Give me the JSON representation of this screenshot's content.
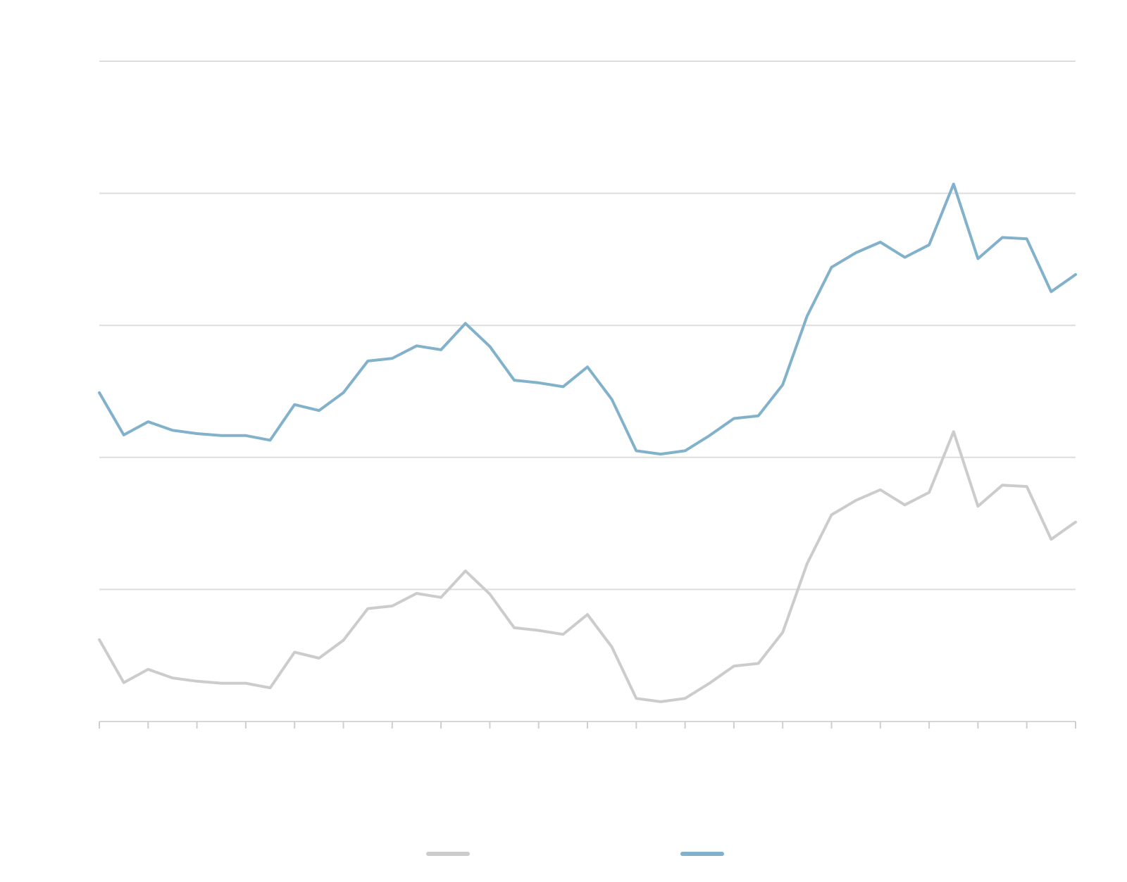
{
  "chart_data": {
    "type": "line",
    "title": "",
    "xlabel": "",
    "ylabel": "",
    "x": [
      0,
      1,
      2,
      3,
      4,
      5,
      6,
      7,
      8,
      9,
      10,
      11,
      12,
      13,
      14,
      15,
      16,
      17,
      18,
      19,
      20,
      21,
      22,
      23,
      24,
      25,
      26,
      27,
      28,
      29,
      30,
      31,
      32,
      33,
      34,
      35,
      36,
      37,
      38,
      39,
      40
    ],
    "ylim": [
      0,
      100
    ],
    "xlim": [
      0,
      40
    ],
    "grid": true,
    "legend": "bottom-center",
    "series": [
      {
        "name": "",
        "color": "#cccccc",
        "values": [
          12.4,
          5.9,
          7.9,
          6.6,
          6.1,
          5.8,
          5.8,
          5.1,
          10.5,
          9.6,
          12.3,
          17.1,
          17.5,
          19.4,
          18.8,
          22.8,
          19.3,
          14.2,
          13.8,
          13.2,
          16.2,
          11.3,
          3.5,
          3.0,
          3.5,
          5.8,
          8.4,
          8.8,
          13.5,
          23.9,
          31.3,
          33.5,
          35.1,
          32.8,
          34.7,
          43.9,
          32.6,
          35.8,
          35.6,
          27.6,
          30.2
        ]
      },
      {
        "name": "",
        "color": "#82b1cb",
        "values": [
          49.8,
          43.4,
          45.4,
          44.1,
          43.6,
          43.3,
          43.3,
          42.6,
          48.0,
          47.1,
          49.8,
          54.6,
          55.0,
          56.9,
          56.3,
          60.3,
          56.8,
          51.7,
          51.3,
          50.7,
          53.7,
          48.8,
          41.0,
          40.5,
          41.0,
          43.3,
          45.9,
          46.3,
          51.0,
          61.4,
          68.8,
          71.0,
          72.6,
          70.3,
          72.2,
          81.4,
          70.1,
          73.3,
          73.1,
          65.1,
          67.7
        ]
      }
    ]
  }
}
